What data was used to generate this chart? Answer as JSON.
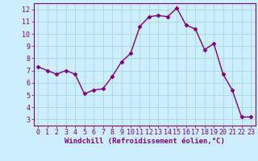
{
  "x": [
    0,
    1,
    2,
    3,
    4,
    5,
    6,
    7,
    8,
    9,
    10,
    11,
    12,
    13,
    14,
    15,
    16,
    17,
    18,
    19,
    20,
    21,
    22,
    23
  ],
  "y": [
    7.3,
    7.0,
    6.7,
    7.0,
    6.7,
    5.1,
    5.4,
    5.5,
    6.5,
    7.7,
    8.4,
    10.6,
    11.4,
    11.5,
    11.4,
    12.1,
    10.7,
    10.4,
    8.7,
    9.2,
    6.7,
    5.4,
    3.2,
    3.2
  ],
  "line_color": "#800080",
  "marker": "D",
  "marker_size": 2.5,
  "xlabel": "Windchill (Refroidissement éolien,°C)",
  "xlim": [
    -0.5,
    23.5
  ],
  "ylim": [
    2.5,
    12.5
  ],
  "xticks": [
    0,
    1,
    2,
    3,
    4,
    5,
    6,
    7,
    8,
    9,
    10,
    11,
    12,
    13,
    14,
    15,
    16,
    17,
    18,
    19,
    20,
    21,
    22,
    23
  ],
  "yticks": [
    3,
    4,
    5,
    6,
    7,
    8,
    9,
    10,
    11,
    12
  ],
  "bg_color": "#cceeff",
  "grid_color": "#aadddd",
  "xlabel_fontsize": 6.5,
  "tick_fontsize": 6,
  "line_width": 1.0,
  "fig_width": 3.2,
  "fig_height": 2.0,
  "dpi": 100
}
